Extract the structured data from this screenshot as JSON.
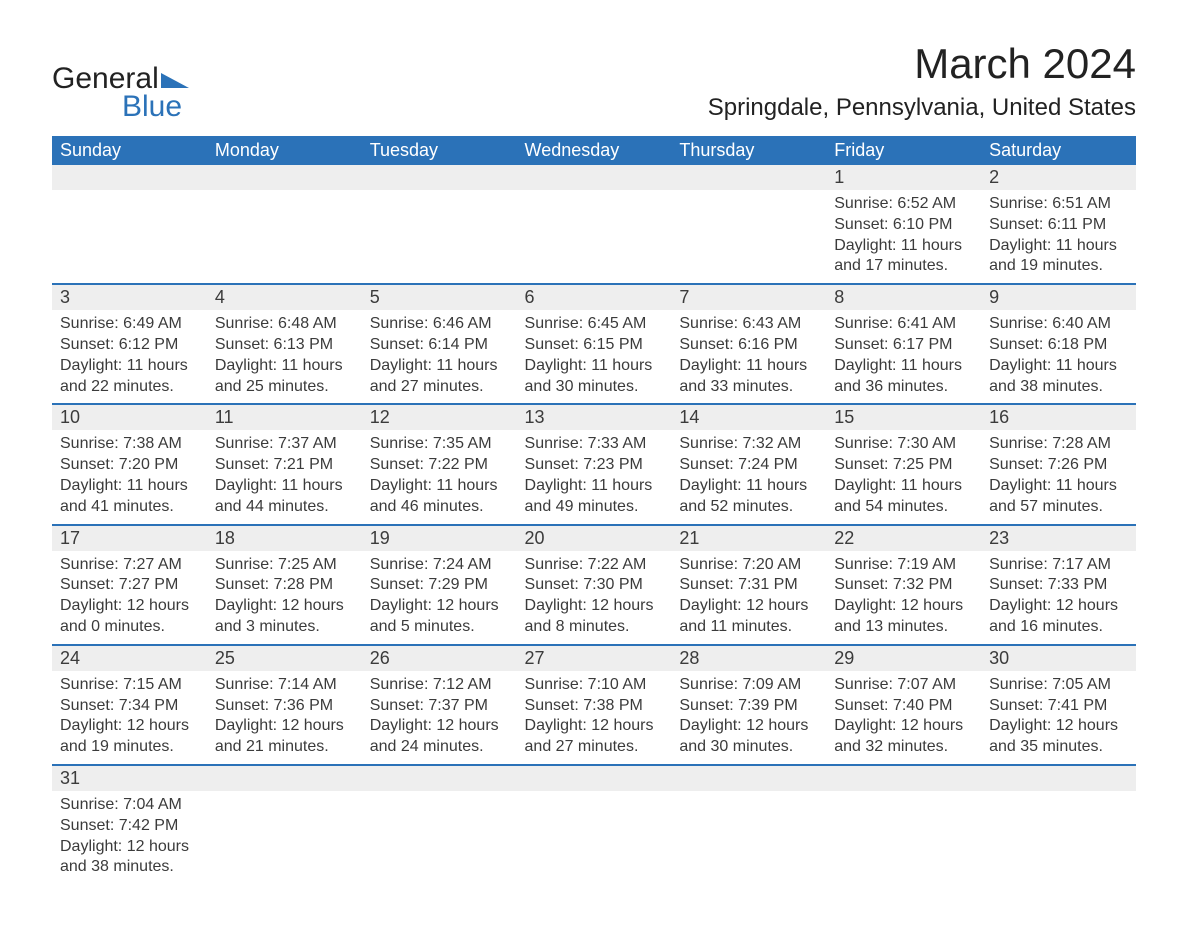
{
  "logo": {
    "line1": "General",
    "line2": "Blue"
  },
  "title": "March 2024",
  "location": "Springdale, Pennsylvania, United States",
  "colors": {
    "header_blue": "#2b72b8",
    "row_separator": "#2b72b8",
    "daynum_bg": "#eeeeee",
    "text": "#3b3b3b",
    "background": "#ffffff"
  },
  "typography": {
    "title_fontsize": 42,
    "location_fontsize": 24,
    "header_fontsize": 18,
    "daynum_fontsize": 18,
    "detail_fontsize": 16,
    "font_family": "Arial"
  },
  "weekdays": [
    "Sunday",
    "Monday",
    "Tuesday",
    "Wednesday",
    "Thursday",
    "Friday",
    "Saturday"
  ],
  "labels": {
    "sunrise": "Sunrise:",
    "sunset": "Sunset:",
    "daylight": "Daylight:"
  },
  "weeks": [
    [
      null,
      null,
      null,
      null,
      null,
      {
        "n": "1",
        "sunrise": "6:52 AM",
        "sunset": "6:10 PM",
        "daylight": "11 hours and 17 minutes."
      },
      {
        "n": "2",
        "sunrise": "6:51 AM",
        "sunset": "6:11 PM",
        "daylight": "11 hours and 19 minutes."
      }
    ],
    [
      {
        "n": "3",
        "sunrise": "6:49 AM",
        "sunset": "6:12 PM",
        "daylight": "11 hours and 22 minutes."
      },
      {
        "n": "4",
        "sunrise": "6:48 AM",
        "sunset": "6:13 PM",
        "daylight": "11 hours and 25 minutes."
      },
      {
        "n": "5",
        "sunrise": "6:46 AM",
        "sunset": "6:14 PM",
        "daylight": "11 hours and 27 minutes."
      },
      {
        "n": "6",
        "sunrise": "6:45 AM",
        "sunset": "6:15 PM",
        "daylight": "11 hours and 30 minutes."
      },
      {
        "n": "7",
        "sunrise": "6:43 AM",
        "sunset": "6:16 PM",
        "daylight": "11 hours and 33 minutes."
      },
      {
        "n": "8",
        "sunrise": "6:41 AM",
        "sunset": "6:17 PM",
        "daylight": "11 hours and 36 minutes."
      },
      {
        "n": "9",
        "sunrise": "6:40 AM",
        "sunset": "6:18 PM",
        "daylight": "11 hours and 38 minutes."
      }
    ],
    [
      {
        "n": "10",
        "sunrise": "7:38 AM",
        "sunset": "7:20 PM",
        "daylight": "11 hours and 41 minutes."
      },
      {
        "n": "11",
        "sunrise": "7:37 AM",
        "sunset": "7:21 PM",
        "daylight": "11 hours and 44 minutes."
      },
      {
        "n": "12",
        "sunrise": "7:35 AM",
        "sunset": "7:22 PM",
        "daylight": "11 hours and 46 minutes."
      },
      {
        "n": "13",
        "sunrise": "7:33 AM",
        "sunset": "7:23 PM",
        "daylight": "11 hours and 49 minutes."
      },
      {
        "n": "14",
        "sunrise": "7:32 AM",
        "sunset": "7:24 PM",
        "daylight": "11 hours and 52 minutes."
      },
      {
        "n": "15",
        "sunrise": "7:30 AM",
        "sunset": "7:25 PM",
        "daylight": "11 hours and 54 minutes."
      },
      {
        "n": "16",
        "sunrise": "7:28 AM",
        "sunset": "7:26 PM",
        "daylight": "11 hours and 57 minutes."
      }
    ],
    [
      {
        "n": "17",
        "sunrise": "7:27 AM",
        "sunset": "7:27 PM",
        "daylight": "12 hours and 0 minutes."
      },
      {
        "n": "18",
        "sunrise": "7:25 AM",
        "sunset": "7:28 PM",
        "daylight": "12 hours and 3 minutes."
      },
      {
        "n": "19",
        "sunrise": "7:24 AM",
        "sunset": "7:29 PM",
        "daylight": "12 hours and 5 minutes."
      },
      {
        "n": "20",
        "sunrise": "7:22 AM",
        "sunset": "7:30 PM",
        "daylight": "12 hours and 8 minutes."
      },
      {
        "n": "21",
        "sunrise": "7:20 AM",
        "sunset": "7:31 PM",
        "daylight": "12 hours and 11 minutes."
      },
      {
        "n": "22",
        "sunrise": "7:19 AM",
        "sunset": "7:32 PM",
        "daylight": "12 hours and 13 minutes."
      },
      {
        "n": "23",
        "sunrise": "7:17 AM",
        "sunset": "7:33 PM",
        "daylight": "12 hours and 16 minutes."
      }
    ],
    [
      {
        "n": "24",
        "sunrise": "7:15 AM",
        "sunset": "7:34 PM",
        "daylight": "12 hours and 19 minutes."
      },
      {
        "n": "25",
        "sunrise": "7:14 AM",
        "sunset": "7:36 PM",
        "daylight": "12 hours and 21 minutes."
      },
      {
        "n": "26",
        "sunrise": "7:12 AM",
        "sunset": "7:37 PM",
        "daylight": "12 hours and 24 minutes."
      },
      {
        "n": "27",
        "sunrise": "7:10 AM",
        "sunset": "7:38 PM",
        "daylight": "12 hours and 27 minutes."
      },
      {
        "n": "28",
        "sunrise": "7:09 AM",
        "sunset": "7:39 PM",
        "daylight": "12 hours and 30 minutes."
      },
      {
        "n": "29",
        "sunrise": "7:07 AM",
        "sunset": "7:40 PM",
        "daylight": "12 hours and 32 minutes."
      },
      {
        "n": "30",
        "sunrise": "7:05 AM",
        "sunset": "7:41 PM",
        "daylight": "12 hours and 35 minutes."
      }
    ],
    [
      {
        "n": "31",
        "sunrise": "7:04 AM",
        "sunset": "7:42 PM",
        "daylight": "12 hours and 38 minutes."
      },
      null,
      null,
      null,
      null,
      null,
      null
    ]
  ]
}
